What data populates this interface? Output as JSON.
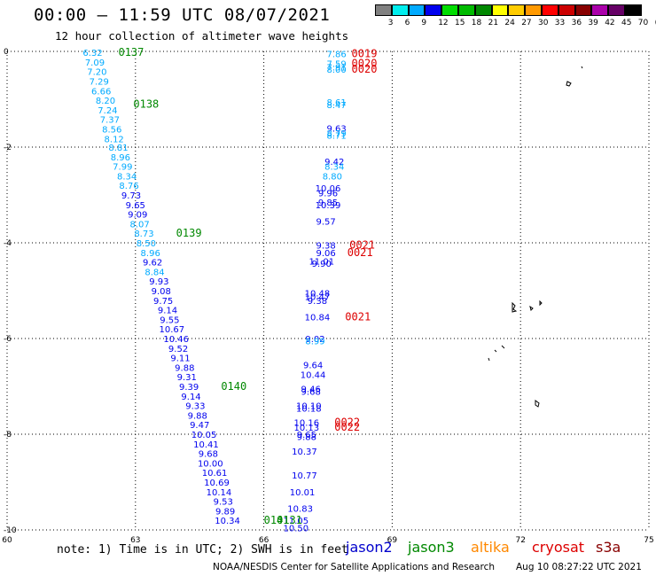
{
  "header": {
    "title": "00:00 – 11:59 UTC 08/07/2021",
    "subtitle": "12 hour collection of altimeter wave heights"
  },
  "footer": {
    "note": "note: 1) Time is in UTC; 2) SWH is in feet",
    "credit": "NOAA/NESDIS Center for Satellite Applications and Research",
    "timestamp": "Aug 10 08:27:22 UTC 2021"
  },
  "legend": {
    "satellites": [
      {
        "name": "jason2",
        "color": "#0000cc"
      },
      {
        "name": "jason3",
        "color": "#008800"
      },
      {
        "name": "altika",
        "color": "#ff8800"
      },
      {
        "name": "cryosat",
        "color": "#dd0000"
      },
      {
        "name": "s3a",
        "color": "#880000"
      }
    ]
  },
  "colorbar": {
    "labels": [
      "3",
      "6",
      "9",
      "12",
      "15",
      "18",
      "21",
      "24",
      "27",
      "30",
      "33",
      "36",
      "39",
      "42",
      "45",
      "70",
      "(ft)"
    ],
    "colors": [
      "#808080",
      "#00eeee",
      "#00aaff",
      "#0000ee",
      "#00dd00",
      "#00bb00",
      "#008800",
      "#ffff00",
      "#ffcc00",
      "#ff9900",
      "#ff0000",
      "#cc0000",
      "#880000",
      "#aa00aa",
      "#660066",
      "#000000"
    ]
  },
  "chart_data": {
    "type": "scatter",
    "xlim": [
      60,
      75
    ],
    "ylim": [
      -10,
      0
    ],
    "xticks": [
      60,
      63,
      66,
      69,
      72,
      75
    ],
    "yticks": [
      0,
      -2,
      -4,
      -6,
      -8,
      -10
    ],
    "grid": true,
    "series": [
      {
        "name": "jason3",
        "color_scale": "swh_ft",
        "points": [
          {
            "x": 62.0,
            "y": -0.02,
            "v": "6.32"
          },
          {
            "x": 62.05,
            "y": -0.22,
            "v": "7.09"
          },
          {
            "x": 62.1,
            "y": -0.42,
            "v": "7.20"
          },
          {
            "x": 62.15,
            "y": -0.62,
            "v": "7.29"
          },
          {
            "x": 62.2,
            "y": -0.82,
            "v": "6.66"
          },
          {
            "x": 62.3,
            "y": -1.02,
            "v": "8.20"
          },
          {
            "x": 62.35,
            "y": -1.22,
            "v": "7.24"
          },
          {
            "x": 62.4,
            "y": -1.42,
            "v": "7.37"
          },
          {
            "x": 62.45,
            "y": -1.62,
            "v": "8.56"
          },
          {
            "x": 62.5,
            "y": -1.82,
            "v": "8.12"
          },
          {
            "x": 62.6,
            "y": -2.0,
            "v": "8.81"
          },
          {
            "x": 62.65,
            "y": -2.2,
            "v": "8.96"
          },
          {
            "x": 62.7,
            "y": -2.4,
            "v": "7.99"
          },
          {
            "x": 62.8,
            "y": -2.6,
            "v": "8.34"
          },
          {
            "x": 62.85,
            "y": -2.8,
            "v": "8.76"
          },
          {
            "x": 62.9,
            "y": -3.0,
            "v": "9.73"
          },
          {
            "x": 63.0,
            "y": -3.2,
            "v": "9.65"
          },
          {
            "x": 63.05,
            "y": -3.4,
            "v": "9.09"
          },
          {
            "x": 63.1,
            "y": -3.6,
            "v": "8.07"
          },
          {
            "x": 63.2,
            "y": -3.8,
            "v": "8.73"
          },
          {
            "x": 63.25,
            "y": -4.0,
            "v": "8.50"
          },
          {
            "x": 63.35,
            "y": -4.2,
            "v": "8.96"
          },
          {
            "x": 63.4,
            "y": -4.4,
            "v": "9.62"
          },
          {
            "x": 63.45,
            "y": -4.6,
            "v": "8.84"
          },
          {
            "x": 63.55,
            "y": -4.8,
            "v": "9.93"
          },
          {
            "x": 63.6,
            "y": -5.0,
            "v": "9.08"
          },
          {
            "x": 63.65,
            "y": -5.2,
            "v": "9.75"
          },
          {
            "x": 63.75,
            "y": -5.4,
            "v": "9.14"
          },
          {
            "x": 63.8,
            "y": -5.6,
            "v": "9.55"
          },
          {
            "x": 63.85,
            "y": -5.8,
            "v": "10.67"
          },
          {
            "x": 63.95,
            "y": -6.0,
            "v": "10.46"
          },
          {
            "x": 64.0,
            "y": -6.2,
            "v": "9.52"
          },
          {
            "x": 64.05,
            "y": -6.4,
            "v": "9.11"
          },
          {
            "x": 64.15,
            "y": -6.6,
            "v": "9.88"
          },
          {
            "x": 64.2,
            "y": -6.8,
            "v": "9.31"
          },
          {
            "x": 64.25,
            "y": -7.0,
            "v": "9.39"
          },
          {
            "x": 64.3,
            "y": -7.2,
            "v": "9.14"
          },
          {
            "x": 64.4,
            "y": -7.4,
            "v": "9.33"
          },
          {
            "x": 64.45,
            "y": -7.6,
            "v": "9.88"
          },
          {
            "x": 64.5,
            "y": -7.8,
            "v": "9.47"
          },
          {
            "x": 64.6,
            "y": -8.0,
            "v": "10.05"
          },
          {
            "x": 64.65,
            "y": -8.2,
            "v": "10.41"
          },
          {
            "x": 64.7,
            "y": -8.4,
            "v": "9.68"
          },
          {
            "x": 64.75,
            "y": -8.6,
            "v": "10.00"
          },
          {
            "x": 64.85,
            "y": -8.8,
            "v": "10.61"
          },
          {
            "x": 64.9,
            "y": -9.0,
            "v": "10.69"
          },
          {
            "x": 64.95,
            "y": -9.2,
            "v": "10.14"
          },
          {
            "x": 65.05,
            "y": -9.4,
            "v": "9.53"
          },
          {
            "x": 65.1,
            "y": -9.6,
            "v": "9.89"
          },
          {
            "x": 65.15,
            "y": -9.8,
            "v": "10.34"
          }
        ]
      },
      {
        "name": "cryosat",
        "color_scale": "swh_ft",
        "points": [
          {
            "x": 67.7,
            "y": -0.05,
            "v": "7.86"
          },
          {
            "x": 67.7,
            "y": -0.25,
            "v": "7.59"
          },
          {
            "x": 67.7,
            "y": -0.32,
            "v": "7.91"
          },
          {
            "x": 67.7,
            "y": -0.37,
            "v": "8.00"
          },
          {
            "x": 67.7,
            "y": -1.06,
            "v": "8.61"
          },
          {
            "x": 67.7,
            "y": -1.11,
            "v": "8.47"
          },
          {
            "x": 67.7,
            "y": -1.6,
            "v": "9.63"
          },
          {
            "x": 67.7,
            "y": -1.7,
            "v": "8.79"
          },
          {
            "x": 67.7,
            "y": -1.75,
            "v": "8.71"
          },
          {
            "x": 67.65,
            "y": -2.3,
            "v": "9.42"
          },
          {
            "x": 67.65,
            "y": -2.4,
            "v": "8.34"
          },
          {
            "x": 67.6,
            "y": -2.6,
            "v": "8.80"
          },
          {
            "x": 67.5,
            "y": -2.85,
            "v": "10.06"
          },
          {
            "x": 67.5,
            "y": -2.95,
            "v": "9.96"
          },
          {
            "x": 67.5,
            "y": -3.15,
            "v": "9.85"
          },
          {
            "x": 67.5,
            "y": -3.2,
            "v": "10.39"
          },
          {
            "x": 67.45,
            "y": -3.55,
            "v": "9.57"
          },
          {
            "x": 67.45,
            "y": -4.05,
            "v": "9.38"
          },
          {
            "x": 67.45,
            "y": -4.2,
            "v": "9.06"
          },
          {
            "x": 67.35,
            "y": -4.38,
            "v": "11.01"
          },
          {
            "x": 67.35,
            "y": -4.43,
            "v": "9.90"
          },
          {
            "x": 67.25,
            "y": -5.05,
            "v": "10.48"
          },
          {
            "x": 67.25,
            "y": -5.12,
            "v": "10.47"
          },
          {
            "x": 67.25,
            "y": -5.2,
            "v": "9.38"
          },
          {
            "x": 67.25,
            "y": -5.55,
            "v": "10.84"
          },
          {
            "x": 67.2,
            "y": -6.0,
            "v": "9.02"
          },
          {
            "x": 67.2,
            "y": -6.05,
            "v": "8.99"
          },
          {
            "x": 67.15,
            "y": -6.55,
            "v": "9.64"
          },
          {
            "x": 67.15,
            "y": -6.75,
            "v": "10.44"
          },
          {
            "x": 67.1,
            "y": -7.05,
            "v": "9.46"
          },
          {
            "x": 67.1,
            "y": -7.1,
            "v": "9.68"
          },
          {
            "x": 67.05,
            "y": -7.4,
            "v": "10.10"
          },
          {
            "x": 67.05,
            "y": -7.45,
            "v": "10.18"
          },
          {
            "x": 67.0,
            "y": -7.75,
            "v": "10.16"
          },
          {
            "x": 67.0,
            "y": -7.85,
            "v": "10.13"
          },
          {
            "x": 67.0,
            "y": -8.0,
            "v": "9.65"
          },
          {
            "x": 67.0,
            "y": -8.05,
            "v": "9.88"
          },
          {
            "x": 66.95,
            "y": -8.35,
            "v": "10.37"
          },
          {
            "x": 66.95,
            "y": -8.85,
            "v": "10.77"
          },
          {
            "x": 66.9,
            "y": -9.2,
            "v": "10.01"
          },
          {
            "x": 66.85,
            "y": -9.55,
            "v": "10.83"
          },
          {
            "x": 66.75,
            "y": -9.8,
            "v": "11.05"
          },
          {
            "x": 66.75,
            "y": -9.95,
            "v": "10.50"
          }
        ]
      }
    ],
    "pass_labels": [
      {
        "x": 62.6,
        "y": -0.02,
        "text": "0137",
        "color": "#008800"
      },
      {
        "x": 62.95,
        "y": -1.1,
        "text": "0138",
        "color": "#008800"
      },
      {
        "x": 63.95,
        "y": -3.8,
        "text": "0139",
        "color": "#008800"
      },
      {
        "x": 65.0,
        "y": -7.0,
        "text": "0140",
        "color": "#008800"
      },
      {
        "x": 66.0,
        "y": -9.8,
        "text": "0141",
        "color": "#008800"
      },
      {
        "x": 68.05,
        "y": -0.05,
        "text": "0019",
        "color": "#dd0000"
      },
      {
        "x": 68.05,
        "y": -0.25,
        "text": "0020",
        "color": "#dd0000"
      },
      {
        "x": 68.05,
        "y": -0.37,
        "text": "0020",
        "color": "#dd0000"
      },
      {
        "x": 68.0,
        "y": -4.05,
        "text": "0021",
        "color": "#dd0000"
      },
      {
        "x": 67.95,
        "y": -4.2,
        "text": "0021",
        "color": "#dd0000"
      },
      {
        "x": 67.9,
        "y": -5.55,
        "text": "0021",
        "color": "#dd0000"
      },
      {
        "x": 67.65,
        "y": -7.75,
        "text": "0022",
        "color": "#dd0000"
      },
      {
        "x": 67.65,
        "y": -7.85,
        "text": "0022",
        "color": "#dd0000"
      },
      {
        "x": 66.3,
        "y": -9.8,
        "text": "0131",
        "color": "#008800"
      }
    ]
  }
}
